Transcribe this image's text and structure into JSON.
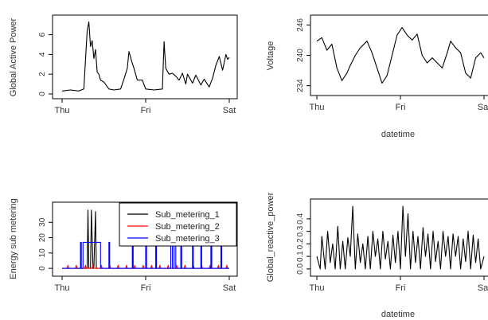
{
  "chart_data": [
    {
      "type": "line",
      "xlabel": "",
      "ylabel": "Global Active Power",
      "xticks": [
        "Thu",
        "Fri",
        "Sat"
      ],
      "xlim": [
        0,
        2
      ],
      "ylim": [
        0,
        7.5
      ],
      "yticks": [
        0,
        2,
        4,
        6
      ],
      "series": [
        {
          "color": "#000000",
          "x": [
            0.0,
            0.1,
            0.2,
            0.26,
            0.3,
            0.32,
            0.34,
            0.36,
            0.38,
            0.4,
            0.42,
            0.44,
            0.46,
            0.5,
            0.56,
            0.62,
            0.7,
            0.74,
            0.78,
            0.8,
            0.84,
            0.86,
            0.9,
            0.96,
            1.0,
            1.1,
            1.2,
            1.22,
            1.24,
            1.28,
            1.32,
            1.36,
            1.4,
            1.44,
            1.48,
            1.5,
            1.56,
            1.6,
            1.66,
            1.7,
            1.76,
            1.8,
            1.84,
            1.88,
            1.92,
            1.96,
            1.98,
            2.0
          ],
          "y": [
            0.3,
            0.4,
            0.3,
            0.5,
            6.4,
            7.3,
            4.8,
            5.4,
            3.6,
            4.5,
            2.2,
            2.0,
            1.4,
            1.2,
            0.5,
            0.4,
            0.5,
            1.5,
            2.6,
            4.3,
            3.1,
            2.6,
            1.4,
            1.4,
            0.5,
            0.4,
            0.5,
            5.3,
            2.6,
            2.0,
            2.1,
            1.8,
            1.4,
            2.1,
            1.0,
            2.0,
            1.1,
            1.9,
            0.9,
            1.5,
            0.7,
            1.6,
            2.9,
            3.8,
            2.4,
            4.0,
            3.5,
            3.7
          ]
        }
      ]
    },
    {
      "type": "line",
      "xlabel": "datetime",
      "ylabel": "Voltage",
      "xticks": [
        "Thu",
        "Fri",
        "Sat"
      ],
      "xlim": [
        0,
        2
      ],
      "ylim": [
        233,
        247
      ],
      "yticks": [
        234,
        240,
        246
      ],
      "series": [
        {
          "color": "#000000",
          "x": [
            0.0,
            0.06,
            0.12,
            0.18,
            0.24,
            0.3,
            0.36,
            0.4,
            0.46,
            0.52,
            0.6,
            0.66,
            0.72,
            0.78,
            0.84,
            0.9,
            0.96,
            1.02,
            1.08,
            1.14,
            1.2,
            1.26,
            1.32,
            1.38,
            1.44,
            1.5,
            1.56,
            1.6,
            1.66,
            1.72,
            1.78,
            1.84,
            1.9,
            1.96,
            2.0
          ],
          "y": [
            242.8,
            243.5,
            241.0,
            242.2,
            237.5,
            235.0,
            236.5,
            238.0,
            240.0,
            241.5,
            242.8,
            240.5,
            237.5,
            234.5,
            236.0,
            240.0,
            244.0,
            245.5,
            244.0,
            243.0,
            244.2,
            240.0,
            238.5,
            239.5,
            238.5,
            237.5,
            240.5,
            242.8,
            241.5,
            240.5,
            236.5,
            235.5,
            239.5,
            240.5,
            239.5
          ]
        }
      ]
    },
    {
      "type": "line",
      "xlabel": "",
      "ylabel": "Energy sub metering",
      "xticks": [
        "Thu",
        "Fri",
        "Sat"
      ],
      "xlim": [
        0,
        2
      ],
      "ylim": [
        -2,
        40
      ],
      "yticks": [
        0,
        10,
        20,
        30
      ],
      "legend_position": "top-right",
      "series": [
        {
          "name": "Sub_metering_1",
          "color": "#000000",
          "x": [
            0.0,
            0.3,
            0.31,
            0.32,
            0.34,
            0.35,
            0.37,
            0.38,
            0.4,
            0.41,
            0.43,
            0.44,
            2.0
          ],
          "y": [
            0,
            0,
            38,
            0,
            0,
            38,
            0,
            0,
            37,
            0,
            0,
            0,
            0
          ]
        },
        {
          "name": "Sub_metering_2",
          "color": "#ff0000",
          "x": [
            0.0,
            0.06,
            0.07,
            0.08,
            0.16,
            0.17,
            0.18,
            0.27,
            0.28,
            0.29,
            0.36,
            0.37,
            0.38,
            0.46,
            0.47,
            0.48,
            0.56,
            0.57,
            0.58,
            0.66,
            0.67,
            0.68,
            0.76,
            0.77,
            0.78,
            0.86,
            0.87,
            0.88,
            0.96,
            0.97,
            0.98,
            1.06,
            1.07,
            1.08,
            1.16,
            1.17,
            1.18,
            1.26,
            1.27,
            1.28,
            1.36,
            1.37,
            1.38,
            1.46,
            1.47,
            1.48,
            1.56,
            1.57,
            1.58,
            1.66,
            1.67,
            1.68,
            1.76,
            1.77,
            1.78,
            1.86,
            1.87,
            1.88,
            1.96,
            1.97,
            1.98,
            2.0
          ],
          "y": [
            0,
            0,
            2,
            0,
            0,
            2,
            0,
            0,
            2,
            0,
            0,
            2,
            0,
            0,
            2,
            0,
            0,
            2,
            0,
            0,
            2,
            0,
            0,
            2,
            0,
            0,
            2,
            0,
            0,
            2,
            0,
            0,
            2,
            0,
            0,
            2,
            0,
            0,
            2,
            0,
            0,
            2,
            0,
            0,
            2,
            0,
            0,
            2,
            0,
            0,
            2,
            0,
            0,
            2,
            0,
            0,
            2,
            0,
            0,
            2,
            0,
            0
          ]
        },
        {
          "name": "Sub_metering_3",
          "color": "#0000ff",
          "x": [
            0.0,
            0.22,
            0.22,
            0.23,
            0.23,
            0.25,
            0.25,
            0.46,
            0.46,
            0.56,
            0.56,
            0.57,
            0.57,
            0.84,
            0.84,
            0.85,
            0.85,
            1.0,
            1.0,
            1.01,
            1.01,
            1.12,
            1.12,
            1.13,
            1.13,
            1.3,
            1.3,
            1.32,
            1.32,
            1.34,
            1.34,
            1.36,
            1.36,
            1.42,
            1.42,
            1.43,
            1.43,
            1.56,
            1.56,
            1.57,
            1.57,
            1.66,
            1.66,
            1.67,
            1.67,
            1.78,
            1.78,
            1.79,
            1.79,
            1.9,
            1.9,
            1.91,
            1.91,
            2.0
          ],
          "y": [
            0,
            0,
            17,
            17,
            0,
            0,
            17,
            17,
            0,
            0,
            17,
            17,
            0,
            0,
            17,
            17,
            0,
            0,
            17,
            17,
            0,
            0,
            17,
            17,
            0,
            0,
            17,
            17,
            0,
            0,
            17,
            17,
            0,
            0,
            17,
            17,
            0,
            0,
            17,
            17,
            0,
            0,
            17,
            17,
            0,
            0,
            17,
            17,
            0,
            0,
            17,
            17,
            0,
            0
          ]
        }
      ]
    },
    {
      "type": "line",
      "xlabel": "datetime",
      "ylabel": "Global_reactive_power",
      "xticks": [
        "Thu",
        "Fri",
        "Sat"
      ],
      "xlim": [
        0,
        2
      ],
      "ylim": [
        -0.02,
        0.52
      ],
      "yticks": [
        0.0,
        0.1,
        0.2,
        0.3,
        0.4
      ],
      "series": [
        {
          "color": "#000000",
          "x": [
            0.0,
            0.04,
            0.06,
            0.1,
            0.13,
            0.16,
            0.19,
            0.22,
            0.25,
            0.28,
            0.31,
            0.34,
            0.37,
            0.4,
            0.43,
            0.46,
            0.49,
            0.52,
            0.55,
            0.58,
            0.61,
            0.64,
            0.67,
            0.7,
            0.73,
            0.76,
            0.79,
            0.82,
            0.85,
            0.88,
            0.91,
            0.94,
            0.97,
            1.0,
            1.03,
            1.06,
            1.09,
            1.12,
            1.15,
            1.18,
            1.21,
            1.24,
            1.27,
            1.3,
            1.33,
            1.36,
            1.39,
            1.42,
            1.45,
            1.48,
            1.51,
            1.54,
            1.57,
            1.6,
            1.63,
            1.66,
            1.69,
            1.72,
            1.75,
            1.78,
            1.81,
            1.84,
            1.87,
            1.9,
            1.93,
            1.96,
            2.0
          ],
          "y": [
            0.1,
            0.0,
            0.26,
            0.0,
            0.3,
            0.05,
            0.2,
            0.0,
            0.34,
            0.0,
            0.22,
            0.0,
            0.25,
            0.1,
            0.5,
            0.0,
            0.28,
            0.05,
            0.2,
            0.0,
            0.26,
            0.0,
            0.3,
            0.1,
            0.24,
            0.0,
            0.3,
            0.08,
            0.22,
            0.0,
            0.27,
            0.05,
            0.3,
            0.0,
            0.5,
            0.1,
            0.44,
            0.0,
            0.3,
            0.05,
            0.26,
            0.0,
            0.33,
            0.1,
            0.28,
            0.0,
            0.3,
            0.06,
            0.22,
            0.0,
            0.3,
            0.1,
            0.26,
            0.0,
            0.28,
            0.1,
            0.26,
            0.0,
            0.24,
            0.06,
            0.3,
            0.0,
            0.27,
            0.05,
            0.24,
            0.0,
            0.1
          ]
        }
      ]
    }
  ]
}
